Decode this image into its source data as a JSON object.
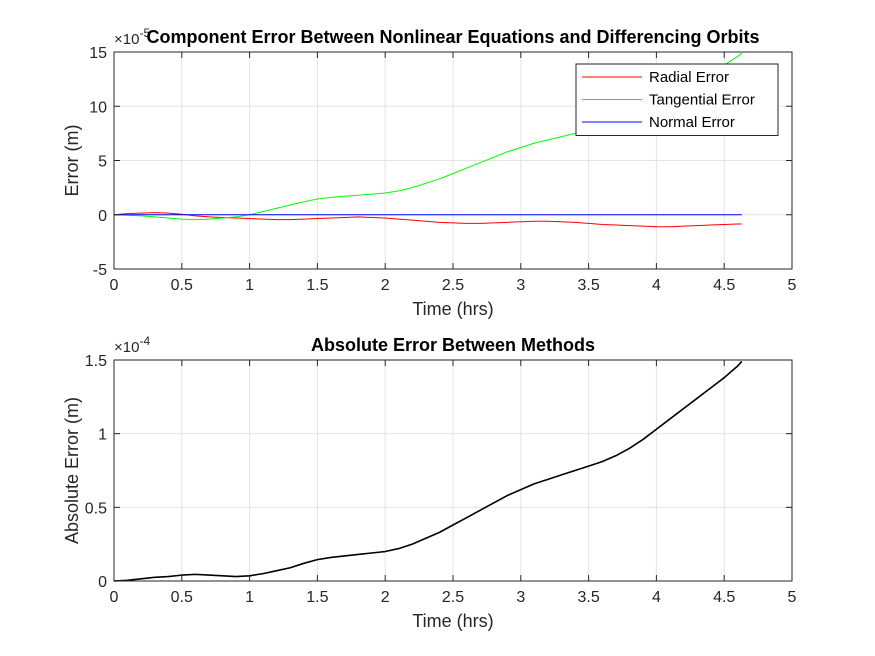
{
  "chart_data": [
    {
      "type": "line",
      "title": "Component Error Between Nonlinear Equations and Differencing Orbits",
      "xlabel": "Time (hrs)",
      "ylabel": "Error (m)",
      "exponent_label": "×10",
      "exponent_power": "-5",
      "xlim": [
        0,
        5
      ],
      "ylim": [
        -5,
        15
      ],
      "xticks": [
        0,
        0.5,
        1,
        1.5,
        2,
        2.5,
        3,
        3.5,
        4,
        4.5,
        5
      ],
      "yticks": [
        -5,
        0,
        5,
        10,
        15
      ],
      "xtick_labels": [
        "0",
        "0.5",
        "1",
        "1.5",
        "2",
        "2.5",
        "3",
        "3.5",
        "4",
        "4.5",
        "5"
      ],
      "ytick_labels": [
        "-5",
        "0",
        "5",
        "10",
        "15"
      ],
      "grid": true,
      "legend_position": "top-right",
      "series": [
        {
          "name": "Radial Error",
          "color": "#ff0000",
          "x": [
            0,
            0.1,
            0.2,
            0.3,
            0.4,
            0.5,
            0.6,
            0.7,
            0.8,
            0.9,
            1.0,
            1.1,
            1.2,
            1.3,
            1.4,
            1.5,
            1.6,
            1.7,
            1.8,
            1.9,
            2.0,
            2.1,
            2.2,
            2.3,
            2.4,
            2.5,
            2.6,
            2.7,
            2.8,
            2.9,
            3.0,
            3.1,
            3.2,
            3.3,
            3.4,
            3.5,
            3.6,
            3.7,
            3.8,
            3.9,
            4.0,
            4.1,
            4.2,
            4.3,
            4.4,
            4.5,
            4.6,
            4.63
          ],
          "values": [
            0,
            0.1,
            0.15,
            0.2,
            0.15,
            0.05,
            -0.1,
            -0.2,
            -0.25,
            -0.3,
            -0.35,
            -0.4,
            -0.45,
            -0.45,
            -0.4,
            -0.35,
            -0.3,
            -0.25,
            -0.2,
            -0.25,
            -0.3,
            -0.4,
            -0.5,
            -0.6,
            -0.7,
            -0.75,
            -0.8,
            -0.8,
            -0.75,
            -0.7,
            -0.65,
            -0.6,
            -0.6,
            -0.65,
            -0.7,
            -0.8,
            -0.9,
            -0.95,
            -1.0,
            -1.05,
            -1.1,
            -1.1,
            -1.05,
            -1.0,
            -0.95,
            -0.9,
            -0.85,
            -0.85
          ]
        },
        {
          "name": "Tangential Error",
          "color": "#00ff00",
          "x": [
            0,
            0.1,
            0.2,
            0.3,
            0.4,
            0.5,
            0.6,
            0.7,
            0.8,
            0.9,
            1.0,
            1.1,
            1.2,
            1.3,
            1.4,
            1.5,
            1.6,
            1.7,
            1.8,
            1.9,
            2.0,
            2.1,
            2.2,
            2.3,
            2.4,
            2.5,
            2.6,
            2.7,
            2.8,
            2.9,
            3.0,
            3.1,
            3.2,
            3.3,
            3.4,
            3.5,
            3.6,
            3.7,
            3.8,
            3.9,
            4.0,
            4.1,
            4.2,
            4.3,
            4.4,
            4.5,
            4.6,
            4.63
          ],
          "values": [
            0,
            -0.05,
            -0.1,
            -0.2,
            -0.3,
            -0.4,
            -0.45,
            -0.4,
            -0.3,
            -0.2,
            0,
            0.3,
            0.6,
            0.9,
            1.2,
            1.45,
            1.6,
            1.7,
            1.8,
            1.9,
            2.0,
            2.2,
            2.5,
            2.9,
            3.3,
            3.8,
            4.3,
            4.8,
            5.3,
            5.8,
            6.2,
            6.6,
            6.9,
            7.2,
            7.5,
            7.8,
            8.1,
            8.5,
            9.0,
            9.6,
            10.3,
            11.0,
            11.7,
            12.4,
            13.1,
            13.8,
            14.6,
            14.9
          ]
        },
        {
          "name": "Normal Error",
          "color": "#0000ff",
          "x": [
            0,
            4.63
          ],
          "values": [
            0,
            0
          ]
        }
      ]
    },
    {
      "type": "line",
      "title": "Absolute Error Between Methods",
      "xlabel": "Time (hrs)",
      "ylabel": "Absolute Error (m)",
      "exponent_label": "×10",
      "exponent_power": "-4",
      "xlim": [
        0,
        5
      ],
      "ylim": [
        0,
        1.5
      ],
      "xticks": [
        0,
        0.5,
        1,
        1.5,
        2,
        2.5,
        3,
        3.5,
        4,
        4.5,
        5
      ],
      "yticks": [
        0,
        0.5,
        1,
        1.5
      ],
      "xtick_labels": [
        "0",
        "0.5",
        "1",
        "1.5",
        "2",
        "2.5",
        "3",
        "3.5",
        "4",
        "4.5",
        "5"
      ],
      "ytick_labels": [
        "0",
        "0.5",
        "1",
        "1.5"
      ],
      "grid": true,
      "series": [
        {
          "color": "#000000",
          "x": [
            0,
            0.1,
            0.2,
            0.3,
            0.4,
            0.5,
            0.6,
            0.7,
            0.8,
            0.9,
            1.0,
            1.1,
            1.2,
            1.3,
            1.4,
            1.5,
            1.6,
            1.7,
            1.8,
            1.9,
            2.0,
            2.1,
            2.2,
            2.3,
            2.4,
            2.5,
            2.6,
            2.7,
            2.8,
            2.9,
            3.0,
            3.1,
            3.2,
            3.3,
            3.4,
            3.5,
            3.6,
            3.7,
            3.8,
            3.9,
            4.0,
            4.1,
            4.2,
            4.3,
            4.4,
            4.5,
            4.6,
            4.63
          ],
          "values": [
            0,
            0.005,
            0.015,
            0.025,
            0.03,
            0.04,
            0.045,
            0.04,
            0.035,
            0.03,
            0.035,
            0.05,
            0.07,
            0.09,
            0.12,
            0.145,
            0.16,
            0.17,
            0.18,
            0.19,
            0.2,
            0.22,
            0.25,
            0.29,
            0.33,
            0.38,
            0.43,
            0.48,
            0.53,
            0.58,
            0.62,
            0.66,
            0.69,
            0.72,
            0.75,
            0.78,
            0.81,
            0.85,
            0.9,
            0.96,
            1.03,
            1.1,
            1.17,
            1.24,
            1.31,
            1.38,
            1.46,
            1.49
          ]
        }
      ]
    }
  ]
}
